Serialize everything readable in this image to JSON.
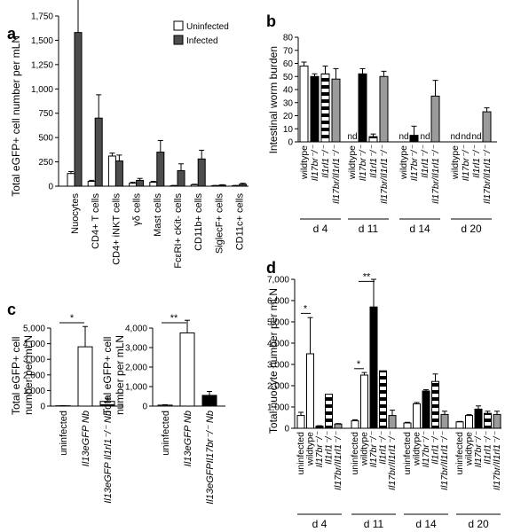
{
  "chart_data": [
    {
      "panel": "a",
      "type": "bar",
      "ylabel": "Total eGFP+ cell number per mLN",
      "ylim": [
        0,
        1750
      ],
      "yticks": [
        "0",
        "250",
        "500",
        "750",
        "1,000",
        "1,250",
        "1,500",
        "1,750"
      ],
      "categories": [
        "Nuocytes",
        "CD4+ T cells",
        "CD4+ iNKT cells",
        "γδ cells",
        "Mast cells",
        "FcεRI+ cKit- cells",
        "CD11b+ cells",
        "SiglecF+ cells",
        "CD11c+ cells"
      ],
      "series": [
        {
          "name": "Uninfected",
          "color": "#ffffff",
          "values": [
            130,
            50,
            310,
            30,
            40,
            5,
            15,
            5,
            5
          ],
          "errors": [
            20,
            10,
            30,
            10,
            10,
            3,
            5,
            3,
            3
          ]
        },
        {
          "name": "Infected",
          "color": "#4d4d4d",
          "values": [
            1580,
            700,
            260,
            60,
            350,
            160,
            280,
            10,
            20
          ],
          "errors": [
            530,
            240,
            60,
            20,
            120,
            70,
            90,
            5,
            10
          ]
        }
      ],
      "legend": "top-right"
    },
    {
      "panel": "b",
      "type": "bar",
      "ylabel": "Intestinal worm burden",
      "ylim": [
        0,
        80
      ],
      "yticks": [
        "0",
        "10",
        "20",
        "30",
        "40",
        "50",
        "60",
        "70",
        "80"
      ],
      "categories": [
        "wildtype",
        "Il17br⁻/⁻",
        "Il1rl1⁻/⁻",
        "Il17br/Il1rl1⁻/⁻"
      ],
      "groups": [
        {
          "label": "d 4",
          "values": [
            58,
            50,
            52,
            48
          ],
          "errors": [
            3,
            2,
            6,
            8
          ],
          "nd": [
            false,
            false,
            false,
            false
          ]
        },
        {
          "label": "d 11",
          "values": [
            0,
            52,
            4,
            50
          ],
          "errors": [
            0,
            4,
            2,
            4
          ],
          "nd": [
            true,
            false,
            false,
            false
          ]
        },
        {
          "label": "d 14",
          "values": [
            0,
            5,
            0,
            35
          ],
          "errors": [
            0,
            7,
            0,
            12
          ],
          "nd": [
            true,
            false,
            true,
            false
          ]
        },
        {
          "label": "d 20",
          "values": [
            0,
            0,
            0,
            23
          ],
          "errors": [
            0,
            0,
            0,
            3
          ],
          "nd": [
            true,
            true,
            true,
            false
          ]
        }
      ],
      "nd_label": "nd"
    },
    {
      "panel": "c-left",
      "type": "bar",
      "ylabel": "Total eGFP+ cell number per mLN",
      "ylim": [
        0,
        5000
      ],
      "yticks": [
        "0",
        "1,000",
        "2,000",
        "3,000",
        "4,000",
        "5,000"
      ],
      "categories": [
        "uninfected",
        "Il13eGFP Nb",
        "Il13eGFP Il1rl1⁻/⁻ Nb"
      ],
      "values": [
        20,
        3800,
        300
      ],
      "errors": [
        10,
        1300,
        200
      ],
      "significance": "*"
    },
    {
      "panel": "c-right",
      "type": "bar",
      "ylabel": "Total eGFP+ cell number per mLN",
      "ylim": [
        0,
        4000
      ],
      "yticks": [
        "0",
        "1,000",
        "2,000",
        "3,000",
        "4,000"
      ],
      "categories": [
        "uninfected",
        "Il13eGFP Nb",
        "Il13eGFPIl17br⁻/⁻ Nb"
      ],
      "values": [
        50,
        3750,
        550
      ],
      "errors": [
        20,
        650,
        200
      ],
      "significance": "**"
    },
    {
      "panel": "d",
      "type": "bar",
      "ylabel": "Total nuocyte number per mLN",
      "ylim": [
        0,
        7000
      ],
      "yticks": [
        "0",
        "1,000",
        "2,000",
        "3,000",
        "4,000",
        "5,000",
        "6,000",
        "7,000"
      ],
      "categories": [
        "uninfected",
        "wildtype",
        "Il17br⁻/⁻",
        "Il1rl1⁻/⁻",
        "Il17br/Il1rl1⁻/⁻"
      ],
      "groups": [
        {
          "label": "d 4",
          "values": [
            600,
            3500,
            100,
            1600,
            200
          ],
          "errors": [
            150,
            1700,
            20,
            0,
            20
          ],
          "sig": "*"
        },
        {
          "label": "d 11",
          "values": [
            350,
            2500,
            5700,
            2700,
            600
          ],
          "errors": [
            50,
            120,
            1300,
            0,
            250
          ],
          "sig1": "*",
          "sig2": "**"
        },
        {
          "label": "d 14",
          "values": [
            250,
            1150,
            1750,
            2200,
            650
          ],
          "errors": [
            30,
            60,
            60,
            350,
            150
          ],
          "sig": ""
        },
        {
          "label": "d 20",
          "values": [
            300,
            600,
            900,
            700,
            650
          ],
          "errors": [
            20,
            40,
            150,
            100,
            150
          ],
          "sig": ""
        }
      ]
    }
  ],
  "panels": {
    "a": "a",
    "b": "b",
    "c": "c",
    "d": "d"
  }
}
